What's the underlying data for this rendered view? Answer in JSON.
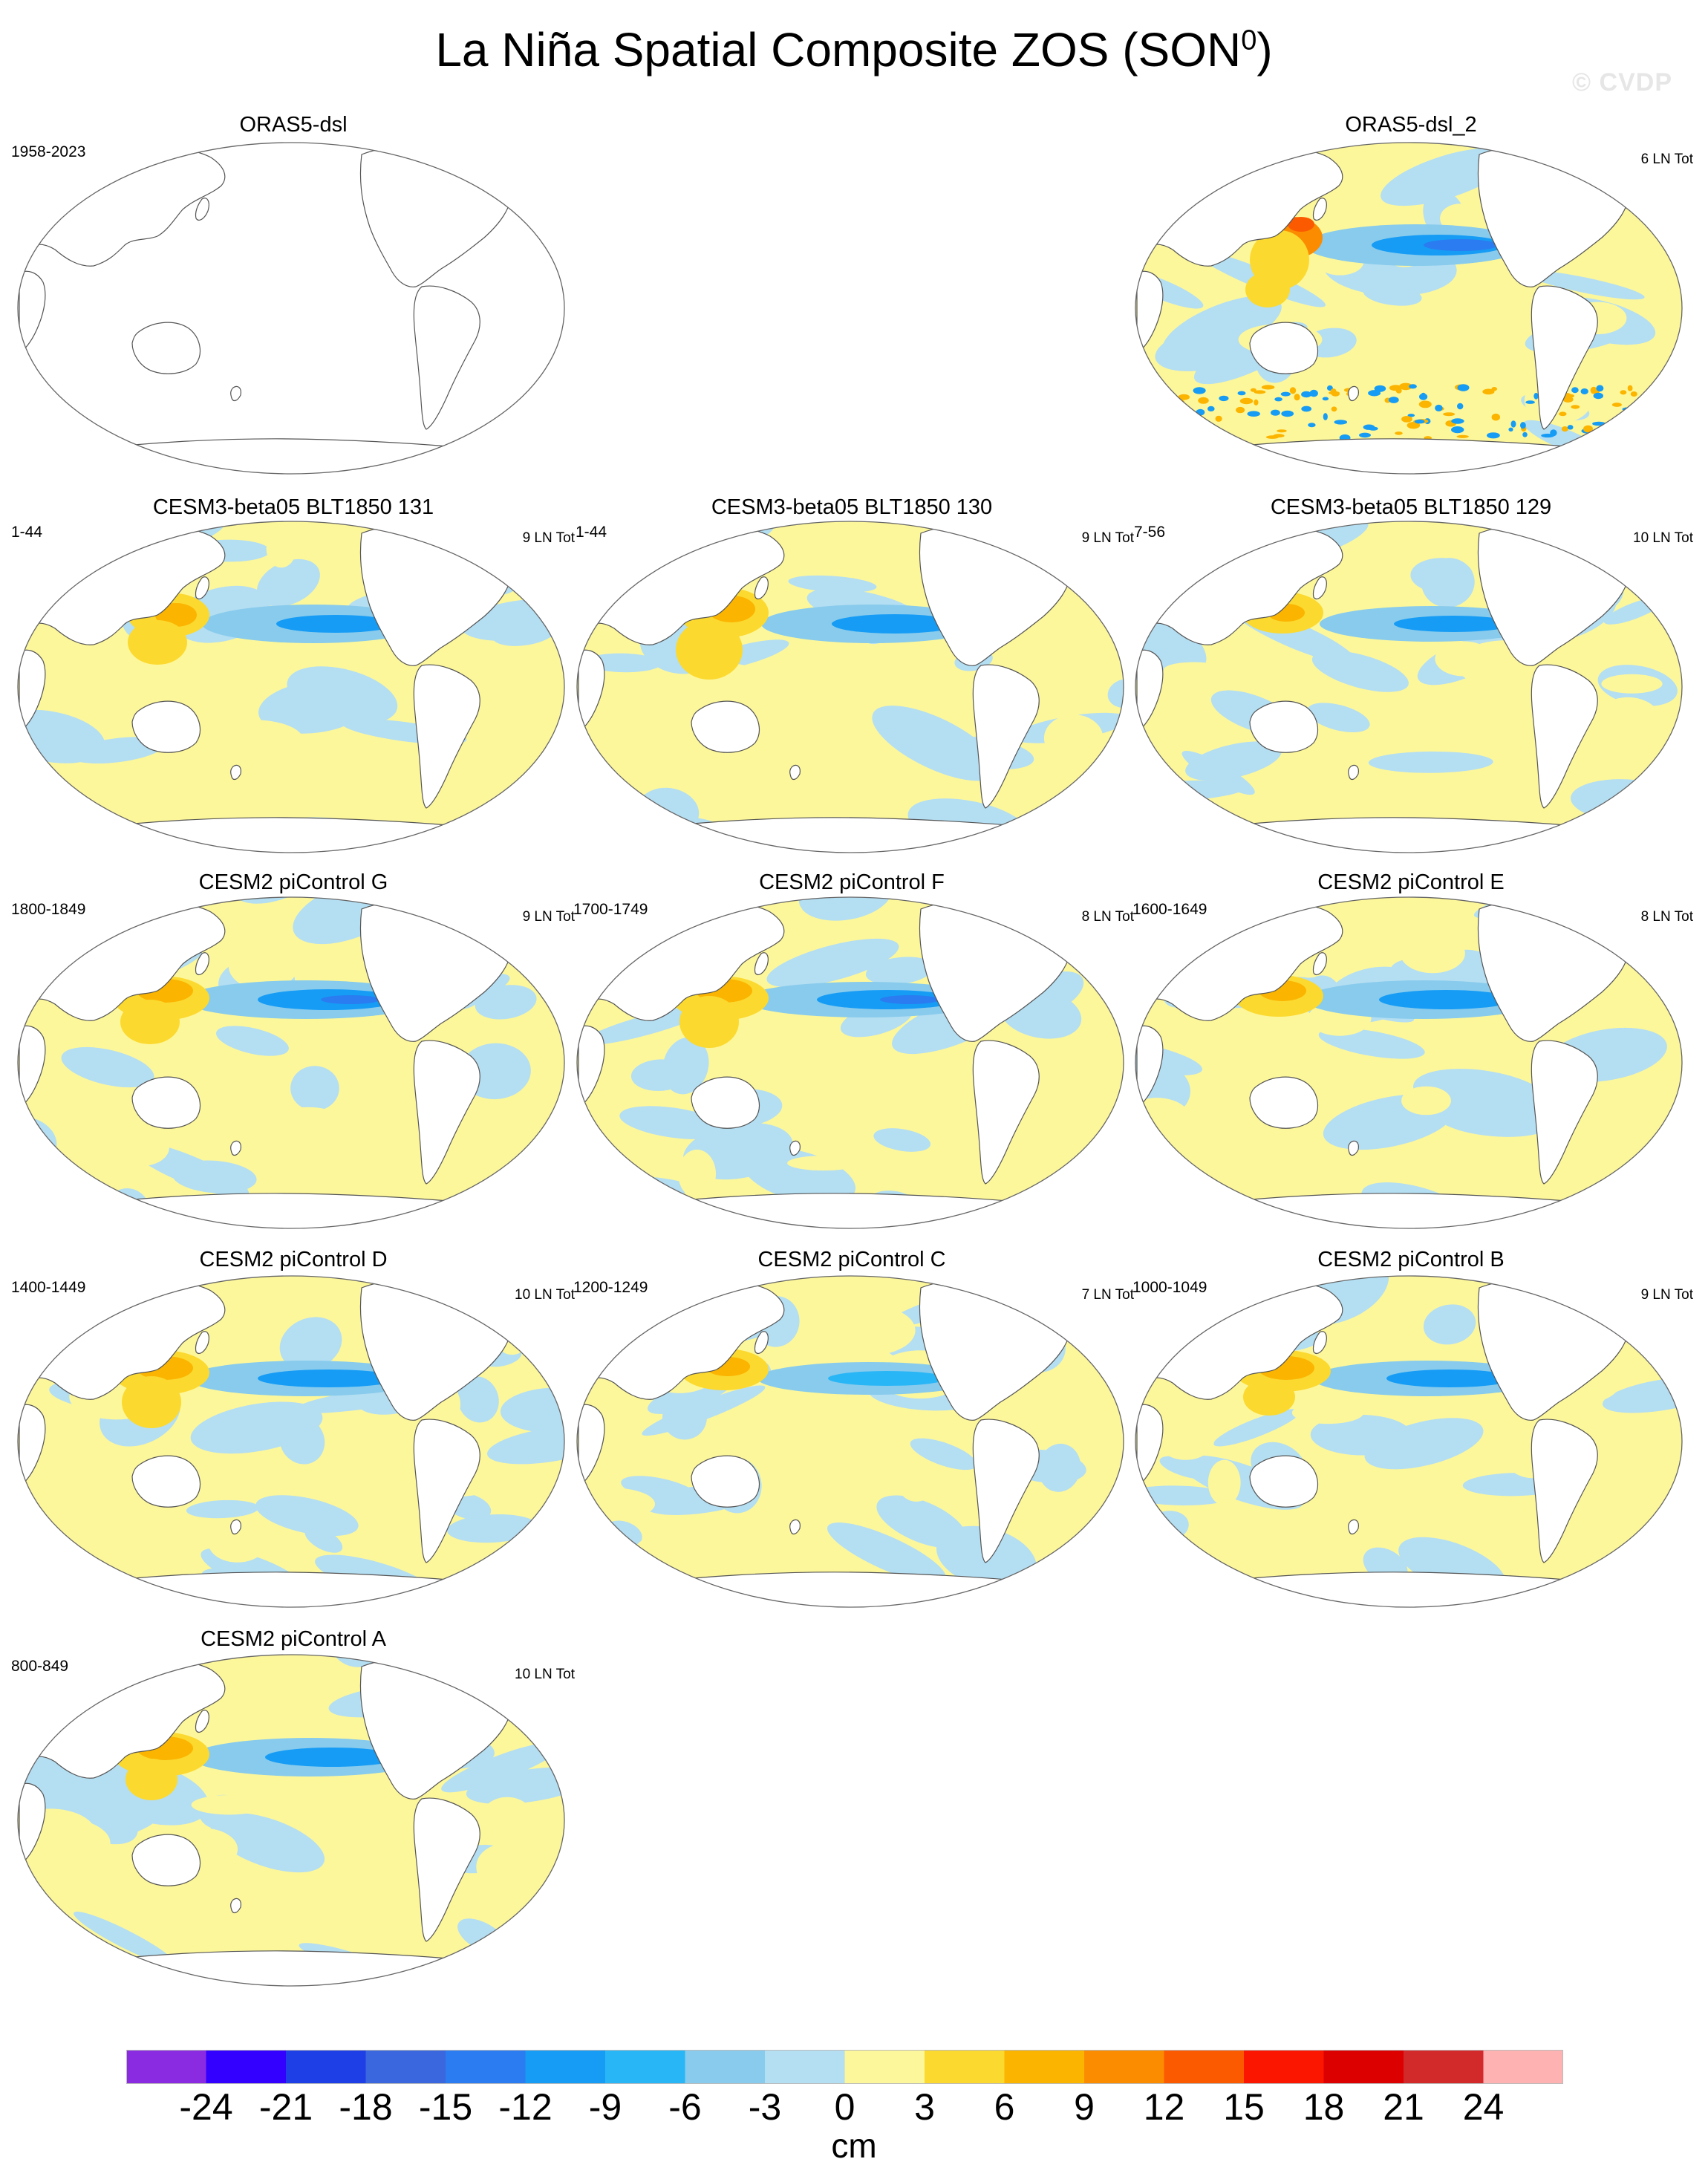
{
  "title": "La Niña Spatial Composite ZOS (SON",
  "title_sup": "0",
  "title_close": ")",
  "watermark": "© CVDP",
  "panels": [
    {
      "title": "ORAS5-dsl",
      "period": "1958-2023",
      "count": "",
      "filled": false
    },
    {
      "title": "ORAS5-dsl_2",
      "period": "",
      "count": "6 LN Tot",
      "filled": true
    },
    {
      "title": "CESM3-beta05 BLT1850 131",
      "period": "1-44",
      "count": "9 LN Tot",
      "filled": true
    },
    {
      "title": "CESM3-beta05 BLT1850 130",
      "period": "1-44",
      "count": "9 LN Tot",
      "filled": true
    },
    {
      "title": "CESM3-beta05 BLT1850 129",
      "period": "7-56",
      "count": "10 LN Tot",
      "filled": true
    },
    {
      "title": "CESM2 piControl G",
      "period": "1800-1849",
      "count": "9 LN Tot",
      "filled": true
    },
    {
      "title": "CESM2 piControl F",
      "period": "1700-1749",
      "count": "8 LN Tot",
      "filled": true
    },
    {
      "title": "CESM2 piControl E",
      "period": "1600-1649",
      "count": "8 LN Tot",
      "filled": true
    },
    {
      "title": "CESM2 piControl D",
      "period": "1400-1449",
      "count": "10 LN Tot",
      "filled": true
    },
    {
      "title": "CESM2 piControl C",
      "period": "1200-1249",
      "count": "7 LN Tot",
      "filled": true
    },
    {
      "title": "CESM2 piControl B",
      "period": "1000-1049",
      "count": "9 LN Tot",
      "filled": true
    },
    {
      "title": "CESM2 piControl A",
      "period": "800-849",
      "count": "10 LN Tot",
      "filled": true
    }
  ],
  "colorbar": {
    "units": "cm",
    "ticks": [
      "-24",
      "-21",
      "-18",
      "-15",
      "-12",
      "-9",
      "-6",
      "-3",
      "0",
      "3",
      "6",
      "9",
      "12",
      "15",
      "18",
      "21",
      "24"
    ],
    "colors": [
      "#8a2be2",
      "#3300ff",
      "#1f3fe6",
      "#3a66de",
      "#2a7cf0",
      "#169cf5",
      "#29b6f6",
      "#88cbec",
      "#b4def2",
      "#fdf79b",
      "#fbd92f",
      "#fbb400",
      "#fb8c00",
      "#fb5a00",
      "#fb1600",
      "#dd0000",
      "#d22a2a",
      "#ffb2b2"
    ]
  }
}
